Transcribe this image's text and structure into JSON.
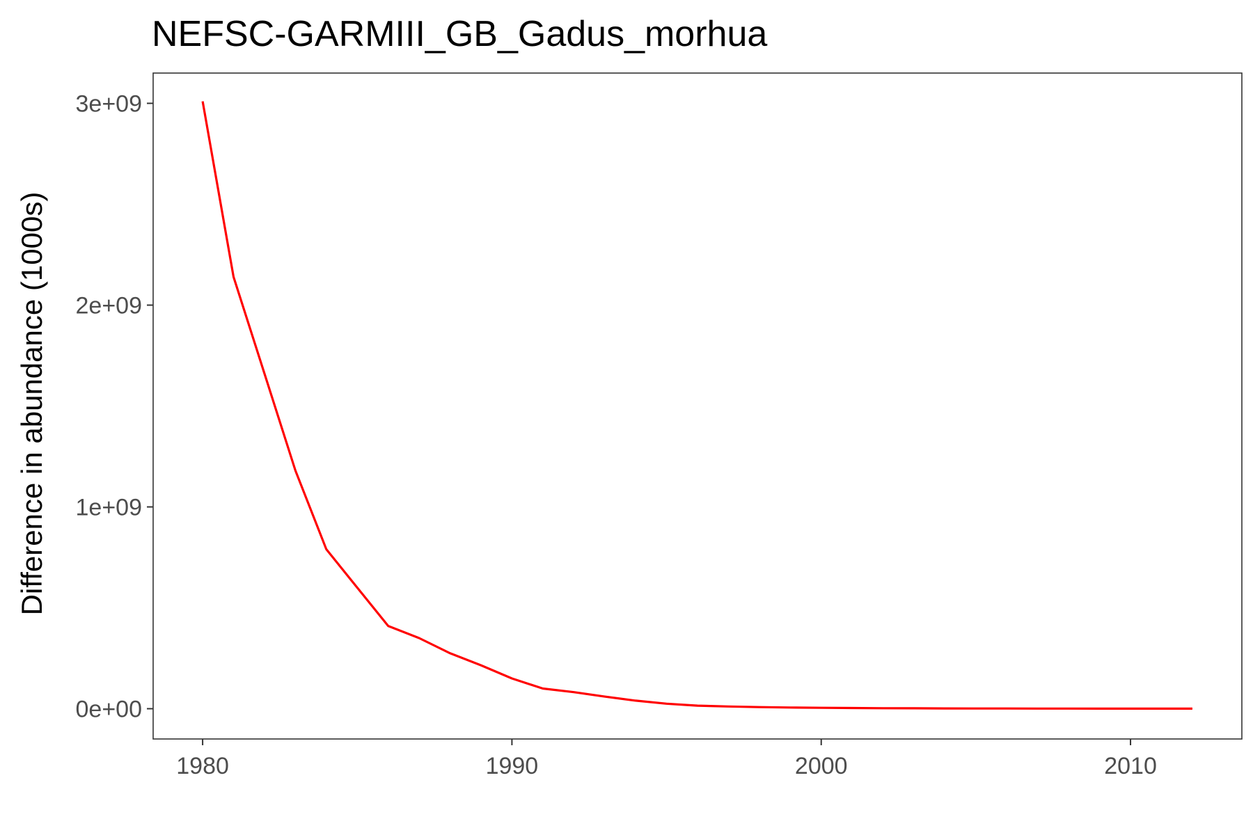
{
  "chart_data": {
    "type": "line",
    "title": "NEFSC-GARMIII_GB_Gadus_morhua",
    "xlabel": "",
    "ylabel": "Difference in abundance (1000s)",
    "xlim": [
      1978.4,
      2013.6
    ],
    "ylim": [
      -150000000,
      3150000000
    ],
    "x_ticks": [
      1980,
      1990,
      2000,
      2010
    ],
    "x_tick_labels": [
      "1980",
      "1990",
      "2000",
      "2010"
    ],
    "y_ticks": [
      0,
      1000000000,
      2000000000,
      3000000000
    ],
    "y_tick_labels": [
      "0e+00",
      "1e+09",
      "2e+09",
      "3e+09"
    ],
    "grid": false,
    "legend": "none",
    "series": [
      {
        "color": "#ff0000",
        "x": [
          1980,
          1981,
          1982,
          1983,
          1984,
          1985,
          1986,
          1987,
          1988,
          1989,
          1990,
          1991,
          1992,
          1993,
          1994,
          1995,
          1996,
          1997,
          1998,
          1999,
          2000,
          2001,
          2002,
          2003,
          2004,
          2005,
          2006,
          2007,
          2008,
          2009,
          2010,
          2011,
          2012
        ],
        "y": [
          3010000000,
          2140000000,
          1660000000,
          1180000000,
          790000000,
          600000000,
          410000000,
          350000000,
          275000000,
          215000000,
          150000000,
          100000000,
          82000000,
          60000000,
          40000000,
          25000000,
          15000000,
          11000000,
          8000000,
          6000000,
          4500000,
          3500000,
          2500000,
          2000000,
          1500000,
          1200000,
          1000000,
          800000,
          600000,
          500000,
          400000,
          300000,
          200000
        ]
      }
    ]
  }
}
